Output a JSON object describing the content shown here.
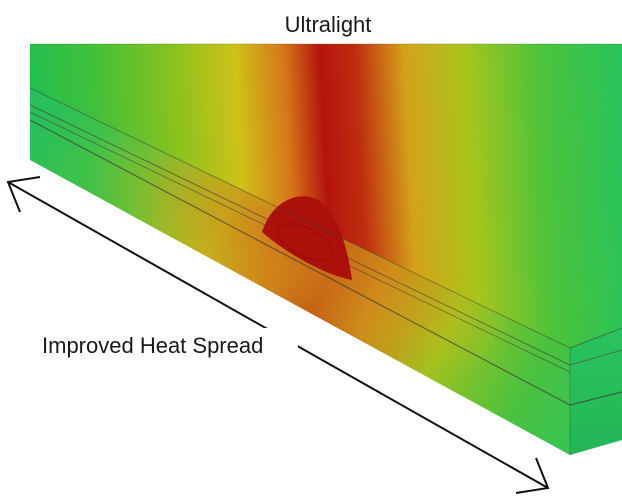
{
  "title": "Ultralight",
  "arrow_label": "Improved Heat Spread",
  "colors": {
    "hot": "#b3140c",
    "warm": "#d8c21a",
    "mid": "#8fc31f",
    "cool": "#27c45c",
    "edge": "#4a4a3a",
    "arrow": "#111111"
  }
}
